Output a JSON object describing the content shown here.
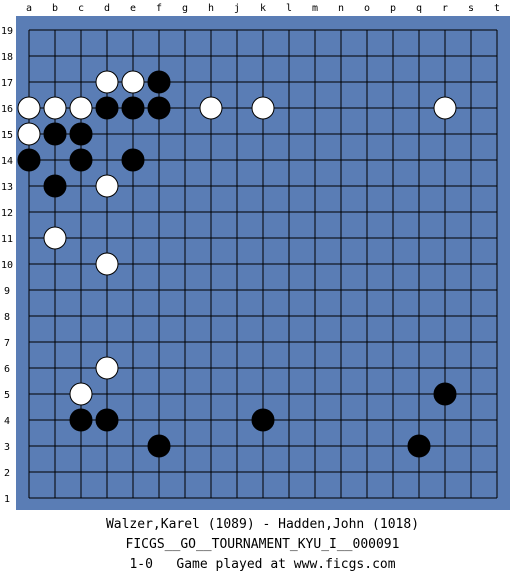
{
  "board": {
    "size": 19,
    "columns": [
      "a",
      "b",
      "c",
      "d",
      "e",
      "f",
      "g",
      "h",
      "j",
      "k",
      "l",
      "m",
      "n",
      "o",
      "p",
      "q",
      "r",
      "s",
      "t"
    ],
    "rows": [
      "19",
      "18",
      "17",
      "16",
      "15",
      "14",
      "13",
      "12",
      "11",
      "10",
      "9",
      "8",
      "7",
      "6",
      "5",
      "4",
      "3",
      "2",
      "1"
    ],
    "colors": {
      "frame": "#5a7db5",
      "grid": "#000000",
      "black_stone": "#000000",
      "white_stone": "#ffffff"
    },
    "stones": [
      {
        "color": "white",
        "col": "d",
        "row": "17"
      },
      {
        "color": "white",
        "col": "e",
        "row": "17"
      },
      {
        "color": "black",
        "col": "f",
        "row": "17"
      },
      {
        "color": "white",
        "col": "a",
        "row": "16"
      },
      {
        "color": "white",
        "col": "b",
        "row": "16"
      },
      {
        "color": "white",
        "col": "c",
        "row": "16"
      },
      {
        "color": "black",
        "col": "d",
        "row": "16"
      },
      {
        "color": "black",
        "col": "e",
        "row": "16"
      },
      {
        "color": "black",
        "col": "f",
        "row": "16"
      },
      {
        "color": "white",
        "col": "h",
        "row": "16"
      },
      {
        "color": "white",
        "col": "k",
        "row": "16"
      },
      {
        "color": "white",
        "col": "r",
        "row": "16"
      },
      {
        "color": "white",
        "col": "a",
        "row": "15"
      },
      {
        "color": "black",
        "col": "b",
        "row": "15"
      },
      {
        "color": "black",
        "col": "c",
        "row": "15"
      },
      {
        "color": "black",
        "col": "a",
        "row": "14"
      },
      {
        "color": "black",
        "col": "c",
        "row": "14"
      },
      {
        "color": "black",
        "col": "e",
        "row": "14"
      },
      {
        "color": "black",
        "col": "b",
        "row": "13"
      },
      {
        "color": "white",
        "col": "d",
        "row": "13"
      },
      {
        "color": "white",
        "col": "b",
        "row": "11"
      },
      {
        "color": "white",
        "col": "d",
        "row": "10"
      },
      {
        "color": "white",
        "col": "d",
        "row": "6"
      },
      {
        "color": "white",
        "col": "c",
        "row": "5"
      },
      {
        "color": "black",
        "col": "r",
        "row": "5"
      },
      {
        "color": "black",
        "col": "c",
        "row": "4"
      },
      {
        "color": "black",
        "col": "d",
        "row": "4"
      },
      {
        "color": "black",
        "col": "k",
        "row": "4"
      },
      {
        "color": "black",
        "col": "f",
        "row": "3"
      },
      {
        "color": "black",
        "col": "q",
        "row": "3"
      }
    ]
  },
  "footer": {
    "players": "Walzer,Karel (1089) - Hadden,John (1018)",
    "event": "FICGS__GO__TOURNAMENT_KYU_I__000091",
    "result": "1-0   Game played at www.ficgs.com"
  }
}
